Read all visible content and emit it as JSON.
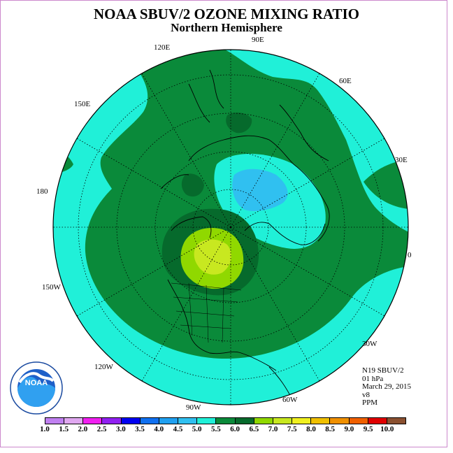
{
  "title": "NOAA SBUV/2 OZONE MIXING RATIO",
  "subtitle": "Northern Hemisphere",
  "longitude_labels": [
    "90E",
    "60E",
    "30E",
    "0",
    "30W",
    "60W",
    "90W",
    "120W",
    "150W",
    "180",
    "150E",
    "120E"
  ],
  "info": {
    "instrument": "N19 SBUV/2",
    "level": "01 hPa",
    "date": "March 29, 2015",
    "version": "v8",
    "units": "PPM"
  },
  "logo": {
    "text": "NOAA",
    "ring_text": "NATIONAL OCEANIC AND ATMOSPHERIC ADMINISTRATION · U.S. DEPARTMENT OF COMMERCE"
  },
  "colorbar": {
    "ticks": [
      "1.0",
      "1.5",
      "2.0",
      "2.5",
      "3.0",
      "3.5",
      "4.0",
      "4.5",
      "5.0",
      "5.5",
      "6.0",
      "6.5",
      "7.0",
      "7.5",
      "8.0",
      "8.5",
      "9.0",
      "9.5",
      "10.0"
    ],
    "colors": [
      "#c080f0",
      "#e0a8f0",
      "#f020f0",
      "#9020f0",
      "#0000f0",
      "#1070f0",
      "#20a0f0",
      "#30c0f0",
      "#20f0d8",
      "#0a8a3a",
      "#066a2c",
      "#90d800",
      "#c8e820",
      "#f0f020",
      "#f0c000",
      "#f09000",
      "#f06000",
      "#e00000",
      "#8a5030"
    ]
  },
  "field_colors": {
    "range_4_5_to_5_0": "#20f0d8",
    "range_5_0_to_5_5": "#0a8a3a",
    "range_5_5_to_6_0": "#066a2c",
    "range_6_0_to_6_5": "#90d800",
    "range_6_5_to_7_0": "#c8e820",
    "range_4_0_to_4_5": "#30c0f0"
  }
}
